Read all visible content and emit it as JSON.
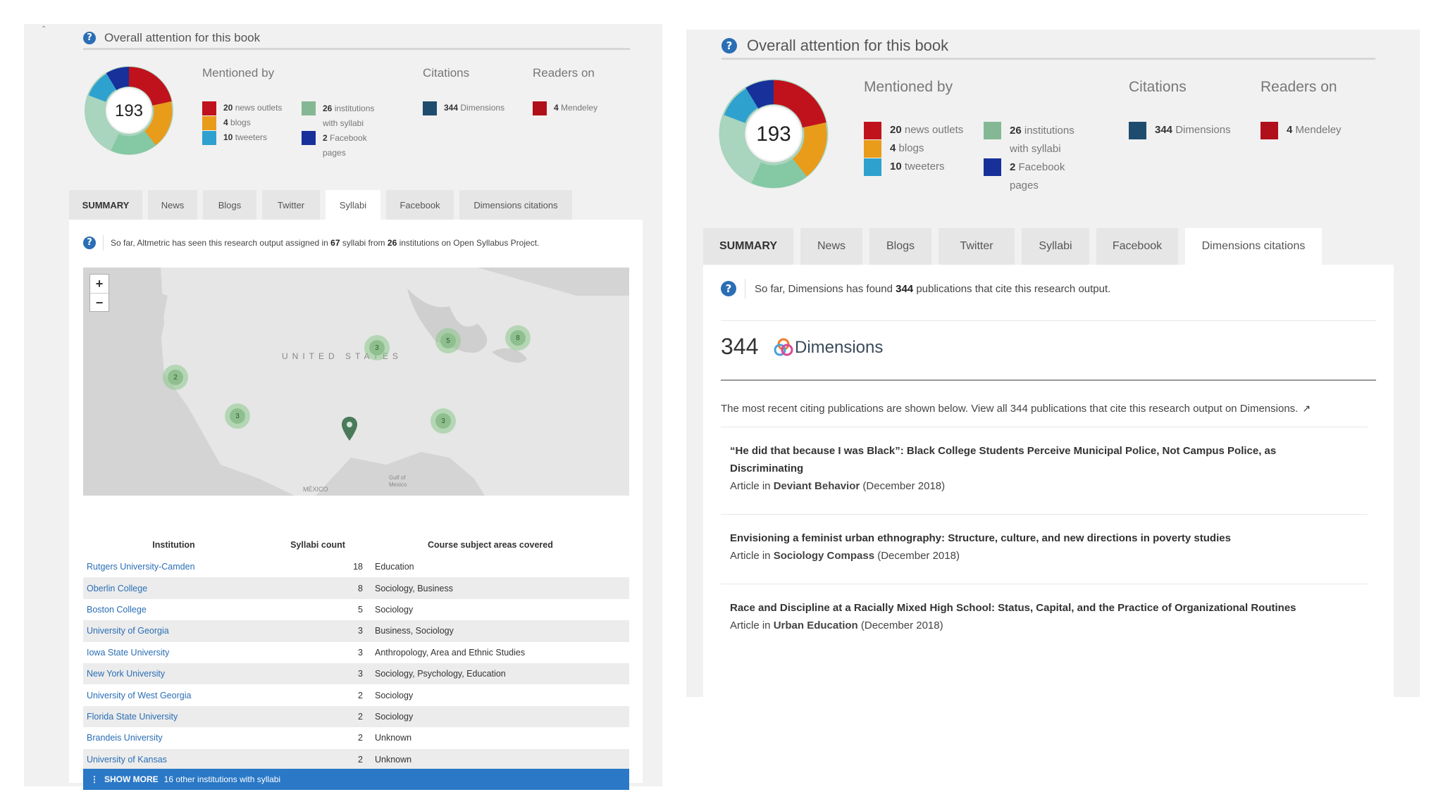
{
  "left": {
    "header_title": "Overall attention for this book",
    "score": "193",
    "columns": {
      "mentioned": "Mentioned by",
      "citations": "Citations",
      "readers": "Readers on"
    },
    "mentions_a": [
      {
        "count": "20",
        "label": "news outlets",
        "color": "#c0121c"
      },
      {
        "count": "4",
        "label": "blogs",
        "color": "#e99b1a"
      },
      {
        "count": "10",
        "label": "tweeters",
        "color": "#2ea1cf"
      }
    ],
    "mentions_b": [
      {
        "count": "26",
        "label": "institutions",
        "label2": "with syllabi",
        "color": "#84b894"
      },
      {
        "count": "2",
        "label": "Facebook",
        "label2": "pages",
        "color": "#17309a"
      }
    ],
    "citation": {
      "count": "344",
      "label": "Dimensions",
      "color": "#1e4c6e"
    },
    "reader": {
      "count": "4",
      "label": "Mendeley",
      "color": "#b0101a"
    },
    "tabs": [
      "SUMMARY",
      "News",
      "Blogs",
      "Twitter",
      "Syllabi",
      "Facebook",
      "Dimensions citations"
    ],
    "info": {
      "pre": "So far, Altmetric has seen this research output assigned in ",
      "n1": "67",
      "mid": " syllabi from ",
      "n2": "26",
      "post": " institutions on Open Syllabus Project."
    },
    "map": {
      "country_label": "UNITED STATES",
      "mexico": "MÉXICO",
      "gulf": "Gulf of Mexico",
      "clusters": [
        "2",
        "3",
        "3",
        "5",
        "8",
        "3"
      ]
    },
    "table": {
      "headers": [
        "Institution",
        "Syllabi count",
        "Course subject areas covered"
      ],
      "rows": [
        [
          "Rutgers University-Camden",
          "18",
          "Education"
        ],
        [
          "Oberlin College",
          "8",
          "Sociology, Business"
        ],
        [
          "Boston College",
          "5",
          "Sociology"
        ],
        [
          "University of Georgia",
          "3",
          "Business, Sociology"
        ],
        [
          "Iowa State University",
          "3",
          "Anthropology, Area and Ethnic Studies"
        ],
        [
          "New York University",
          "3",
          "Sociology, Psychology, Education"
        ],
        [
          "University of West Georgia",
          "2",
          "Sociology"
        ],
        [
          "Florida State University",
          "2",
          "Sociology"
        ],
        [
          "Brandeis University",
          "2",
          "Unknown"
        ],
        [
          "University of Kansas",
          "2",
          "Unknown"
        ]
      ]
    },
    "show_more": {
      "label": "SHOW MORE",
      "text": "16 other institutions with syllabi"
    }
  },
  "right": {
    "header_title": "Overall attention for this book",
    "score": "193",
    "columns": {
      "mentioned": "Mentioned by",
      "citations": "Citations",
      "readers": "Readers on"
    },
    "tabs": [
      "SUMMARY",
      "News",
      "Blogs",
      "Twitter",
      "Syllabi",
      "Facebook",
      "Dimensions citations"
    ],
    "info": {
      "pre": "So far, Dimensions has found ",
      "n": "344",
      "post": " publications that cite this research output."
    },
    "dims_count": "344",
    "dims_brand": "Dimensions",
    "recent_text": "The most recent citing publications are shown below. View all 344 publications that cite this research output on Dimensions.",
    "articles": [
      {
        "title": "“He did that because I was Black”: Black College Students Perceive Municipal Police, Not Campus Police, as Discriminating",
        "prefix": "Article in ",
        "journal": "Deviant Behavior",
        "date": " (December 2018)"
      },
      {
        "title": "Envisioning a feminist urban ethnography: Structure, culture, and new directions in poverty studies",
        "prefix": "Article in ",
        "journal": "Sociology Compass",
        "date": " (December 2018)"
      },
      {
        "title": "Race and Discipline at a Racially Mixed High School: Status, Capital, and the Practice of Organizational Routines",
        "prefix": "Article in ",
        "journal": "Urban Education",
        "date": " (December 2018)"
      }
    ]
  },
  "colors": {
    "link": "#2a6eb5",
    "show_more_bg": "#2a78c6",
    "panel_bg": "#f1f1f1"
  }
}
